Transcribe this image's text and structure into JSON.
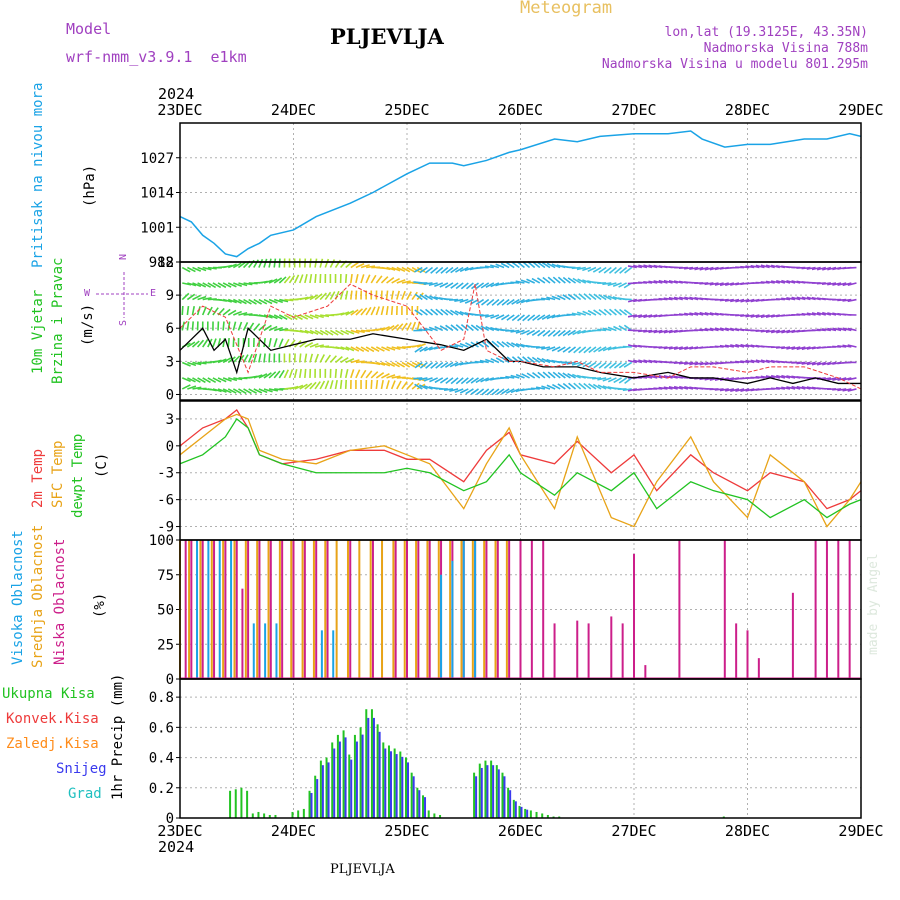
{
  "header": {
    "model_label": "Model",
    "model_value": "wrf-nmm_v3.9.1  e1km",
    "station": "PLJEVLJA",
    "meteogram_label": "Meteogram",
    "coords": "lon,lat (19.3125E, 43.35N)",
    "altitude": "Nadmorska Visina 788m",
    "model_altitude": "Nadmorska Visina u modelu 801.295m",
    "year_top": "2024",
    "year_bottom": "2024",
    "footer_station": "PLJEVLJA",
    "watermark": "made by Angel"
  },
  "colors": {
    "pressure": "#1aa3e6",
    "temp2m": "#ee3b3b",
    "sfc": "#e8a317",
    "dewpt": "#22c322",
    "total": "#22c322",
    "konvek": "#ee3b3b",
    "zaledj": "#ff8c1a",
    "snijeg": "#3a3aee",
    "grad": "#20c0c0",
    "visoka": "#1aa3e6",
    "srednja": "#e8a317",
    "niska": "#cc1f8a",
    "wind_scale": "#a040c0",
    "model": "#a040c0"
  },
  "labels": {
    "pressure_title": "Pritisak na nivou mora",
    "pressure_unit": "(hPa)",
    "wind_title_1": "10m Vjetar",
    "wind_title_2": "Brzina i Pravac",
    "wind_unit": "(m/s)",
    "temp_1": "2m Temp",
    "temp_2": "SFC Temp",
    "temp_3": "dewpt Temp",
    "temp_unit": "(C)",
    "cloud_1": "Visoka Oblacnost",
    "cloud_2": "Srednja Oblacnost",
    "cloud_3": "Niska Oblacnost",
    "cloud_unit": "(%)",
    "precip_1": "Ukupna Kisa",
    "precip_2": "Konvek.Kisa",
    "precip_3": "Zaledj.Kisa",
    "precip_4": "Snijeg",
    "precip_5": "Grad",
    "precip_unit": "1hr Precip (mm)",
    "compass_n": "N",
    "compass_s": "S",
    "compass_w": "W",
    "compass_e": "E"
  },
  "chart_data": [
    {
      "type": "line",
      "name": "pressure",
      "x_ticks": [
        "23DEC",
        "24DEC",
        "25DEC",
        "26DEC",
        "27DEC",
        "28DEC",
        "29DEC"
      ],
      "ylabel": "(hPa)",
      "yticks": [
        988,
        1001,
        1014,
        1027
      ],
      "ylim": [
        988,
        1040
      ],
      "grid": true,
      "series": [
        {
          "x": [
            0,
            0.1,
            0.2,
            0.3,
            0.4,
            0.5,
            0.6,
            0.7,
            0.8,
            1.0,
            1.2,
            1.5,
            1.7,
            2.0,
            2.2,
            2.4,
            2.5,
            2.7,
            2.9,
            3.0,
            3.3,
            3.5,
            3.7,
            4.0,
            4.3,
            4.5,
            4.6,
            4.8,
            5.0,
            5.2,
            5.5,
            5.7,
            5.9,
            6.0
          ],
          "values": [
            1005,
            1003,
            998,
            995,
            991,
            990,
            993,
            995,
            998,
            1000,
            1005,
            1010,
            1014,
            1021,
            1025,
            1025,
            1024,
            1026,
            1029,
            1030,
            1034,
            1033,
            1035,
            1036,
            1036,
            1037,
            1034,
            1031,
            1032,
            1032,
            1034,
            1034,
            1036,
            1035
          ]
        }
      ]
    },
    {
      "type": "line",
      "name": "wind",
      "ylabel": "(m/s)",
      "yticks": [
        0,
        3,
        6,
        9,
        12
      ],
      "ylim": [
        -0.5,
        12
      ],
      "grid": true,
      "series": [
        {
          "x": [
            0,
            0.1,
            0.2,
            0.3,
            0.4,
            0.5,
            0.6,
            0.7,
            0.8,
            1.0,
            1.2,
            1.5,
            1.7,
            2.0,
            2.3,
            2.5,
            2.7,
            2.9,
            3.0,
            3.2,
            3.5,
            3.7,
            4.0,
            4.3,
            4.5,
            4.7,
            5.0,
            5.2,
            5.4,
            5.6,
            5.8,
            6.0
          ],
          "values": [
            4,
            5,
            6,
            4,
            5,
            2,
            6,
            5,
            4,
            4.5,
            5,
            5,
            5.5,
            5,
            4.5,
            4,
            5,
            3,
            3,
            2.5,
            2.5,
            2,
            1.5,
            2,
            1.5,
            1.5,
            1,
            1.5,
            1,
            1.5,
            1,
            1
          ]
        },
        {
          "x": [
            0,
            0.2,
            0.4,
            0.6,
            0.8,
            1.0,
            1.3,
            1.5,
            1.7,
            2.0,
            2.3,
            2.5,
            2.6,
            2.7,
            2.9,
            3.0,
            3.3,
            3.5,
            3.7,
            4.0,
            4.3,
            4.5,
            4.7,
            5.0,
            5.2,
            5.5,
            5.8,
            6.0
          ],
          "values": [
            6,
            8,
            7,
            2,
            8,
            7,
            8,
            10,
            9,
            8,
            4,
            5,
            10,
            4,
            3,
            3,
            2.5,
            3,
            2,
            2,
            1.5,
            2.5,
            2.5,
            2,
            2.5,
            2.5,
            1.5,
            0.5
          ]
        }
      ],
      "arrow_rows": [
        0.5,
        1.5,
        2.9,
        4.3,
        5.8,
        7.2,
        8.6,
        10.1,
        11.5
      ],
      "arrow_color_stops": [
        {
          "x": 0.0,
          "color": "#40d040"
        },
        {
          "x": 0.9,
          "color": "#a8e030"
        },
        {
          "x": 1.5,
          "color": "#f0c020"
        },
        {
          "x": 2.1,
          "color": "#30b0e0"
        },
        {
          "x": 3.5,
          "color": "#40c0e0"
        },
        {
          "x": 4.0,
          "color": "#9040d0"
        },
        {
          "x": 6.0,
          "color": "#8040d0"
        }
      ]
    },
    {
      "type": "line",
      "name": "temperature",
      "ylabel": "(C)",
      "yticks": [
        3,
        0,
        -3,
        -6,
        -9
      ],
      "ylim": [
        -10.5,
        5
      ],
      "grid": true,
      "series": [
        {
          "color": "temp2m",
          "x": [
            0,
            0.2,
            0.4,
            0.5,
            0.6,
            0.7,
            0.9,
            1.2,
            1.5,
            1.8,
            2.0,
            2.2,
            2.5,
            2.7,
            2.9,
            3.0,
            3.3,
            3.5,
            3.8,
            4.0,
            4.2,
            4.5,
            4.7,
            5.0,
            5.2,
            5.5,
            5.7,
            5.9,
            6.0
          ],
          "values": [
            0,
            2,
            3,
            4,
            2,
            -1,
            -2,
            -1.5,
            -0.5,
            -0.5,
            -1.5,
            -1.5,
            -4,
            -0.5,
            1.5,
            -1,
            -2,
            0.5,
            -3,
            -1,
            -5,
            -1,
            -3,
            -5,
            -3,
            -4,
            -7,
            -6,
            -5
          ]
        },
        {
          "color": "sfc",
          "x": [
            0,
            0.2,
            0.4,
            0.5,
            0.6,
            0.7,
            0.9,
            1.2,
            1.5,
            1.8,
            2.0,
            2.2,
            2.5,
            2.7,
            2.9,
            3.0,
            3.3,
            3.5,
            3.8,
            4.0,
            4.2,
            4.5,
            4.7,
            5.0,
            5.2,
            5.5,
            5.7,
            5.9,
            6.0
          ],
          "values": [
            -1,
            1,
            3,
            3.5,
            3,
            -0.5,
            -1.5,
            -2,
            -0.5,
            0,
            -1,
            -2,
            -7,
            -2,
            2,
            -1,
            -7,
            1,
            -8,
            -9,
            -4,
            1,
            -4,
            -8,
            -1,
            -4,
            -9,
            -6,
            -4
          ]
        },
        {
          "color": "dewpt",
          "x": [
            0,
            0.2,
            0.4,
            0.5,
            0.6,
            0.7,
            0.9,
            1.2,
            1.5,
            1.8,
            2.0,
            2.2,
            2.5,
            2.7,
            2.9,
            3.0,
            3.3,
            3.5,
            3.8,
            4.0,
            4.2,
            4.5,
            4.7,
            5.0,
            5.2,
            5.5,
            5.7,
            5.9,
            6.0
          ],
          "values": [
            -2,
            -1,
            1,
            3,
            2,
            -1,
            -2,
            -3,
            -3,
            -3,
            -2.5,
            -3,
            -5,
            -4,
            -1,
            -3,
            -5.5,
            -3,
            -5,
            -3,
            -7,
            -4,
            -5,
            -6,
            -8,
            -6,
            -8,
            -6.5,
            -6
          ]
        }
      ]
    },
    {
      "type": "bar",
      "name": "clouds",
      "ylabel": "(%)",
      "yticks": [
        0,
        25,
        50,
        75,
        100
      ],
      "ylim": [
        0,
        100
      ],
      "grid": true,
      "series": [
        {
          "name": "niska",
          "x": [
            0.05,
            0.1,
            0.2,
            0.3,
            0.4,
            0.5,
            0.55,
            0.6,
            0.7,
            0.8,
            0.9,
            1.0,
            1.1,
            1.2,
            1.3,
            1.5,
            1.7,
            1.9,
            2.0,
            2.1,
            2.2,
            2.3,
            2.4,
            2.5,
            2.6,
            2.7,
            2.8,
            2.9,
            3.0,
            3.1,
            3.2,
            3.3,
            3.5,
            3.6,
            3.8,
            3.9,
            4.0,
            4.1,
            4.4,
            4.8,
            4.9,
            5.0,
            5.1,
            5.4,
            5.6,
            5.7,
            5.8,
            5.9
          ],
          "values": [
            100,
            100,
            100,
            100,
            100,
            100,
            65,
            100,
            100,
            100,
            100,
            100,
            100,
            100,
            100,
            100,
            100,
            100,
            100,
            100,
            100,
            100,
            100,
            100,
            100,
            100,
            100,
            100,
            100,
            100,
            100,
            40,
            42,
            40,
            45,
            40,
            90,
            10,
            100,
            100,
            40,
            35,
            15,
            62,
            100,
            100,
            100,
            100
          ]
        },
        {
          "name": "srednja",
          "x": [
            0.0,
            0.08,
            0.18,
            0.28,
            0.38,
            0.48,
            0.58,
            0.68,
            0.78,
            0.88,
            0.98,
            1.08,
            1.18,
            1.28,
            1.38,
            1.48,
            1.58,
            1.68,
            1.78,
            1.88,
            1.98,
            2.08,
            2.18,
            2.28,
            2.38,
            2.48,
            2.58,
            2.68,
            2.78,
            2.88,
            3.0
          ],
          "values": [
            100,
            100,
            100,
            100,
            100,
            100,
            100,
            100,
            100,
            100,
            100,
            100,
            100,
            100,
            100,
            100,
            100,
            100,
            100,
            100,
            100,
            100,
            100,
            100,
            100,
            100,
            100,
            100,
            100,
            100,
            60
          ]
        },
        {
          "name": "visoka",
          "x": [
            0.15,
            0.25,
            0.35,
            0.45,
            0.65,
            0.75,
            0.85,
            1.25,
            1.35,
            2.3,
            2.4,
            2.5,
            2.6
          ],
          "values": [
            100,
            100,
            100,
            100,
            40,
            40,
            40,
            35,
            35,
            75,
            85,
            100,
            100
          ]
        }
      ]
    },
    {
      "type": "bar",
      "name": "precip",
      "ylabel": "1hr Precip (mm)",
      "yticks": [
        0,
        0.2,
        0.4,
        0.6,
        0.8
      ],
      "ylim": [
        0,
        0.92
      ],
      "grid": true,
      "series": [
        {
          "name": "Ukupna Kisa",
          "x": [
            0.45,
            0.5,
            0.55,
            0.6,
            0.65,
            0.7,
            0.75,
            0.8,
            0.85,
            1.0,
            1.05,
            1.1,
            1.15,
            1.2,
            1.25,
            1.3,
            1.35,
            1.4,
            1.45,
            1.5,
            1.55,
            1.6,
            1.65,
            1.7,
            1.75,
            1.8,
            1.85,
            1.9,
            1.95,
            2.0,
            2.05,
            2.1,
            2.15,
            2.2,
            2.25,
            2.3,
            2.6,
            2.65,
            2.7,
            2.75,
            2.8,
            2.85,
            2.9,
            2.95,
            3.0,
            3.05,
            3.1,
            3.15,
            3.2,
            3.25,
            3.3,
            3.35,
            4.8
          ],
          "values": [
            0.18,
            0.19,
            0.2,
            0.18,
            0.03,
            0.04,
            0.03,
            0.02,
            0.02,
            0.04,
            0.05,
            0.06,
            0.18,
            0.28,
            0.38,
            0.4,
            0.5,
            0.55,
            0.58,
            0.42,
            0.55,
            0.6,
            0.72,
            0.72,
            0.62,
            0.5,
            0.48,
            0.46,
            0.44,
            0.4,
            0.3,
            0.2,
            0.15,
            0.05,
            0.03,
            0.02,
            0.3,
            0.36,
            0.38,
            0.38,
            0.35,
            0.3,
            0.2,
            0.12,
            0.08,
            0.06,
            0.05,
            0.04,
            0.03,
            0.02,
            0.01,
            0.01,
            0.01
          ]
        }
      ]
    }
  ]
}
